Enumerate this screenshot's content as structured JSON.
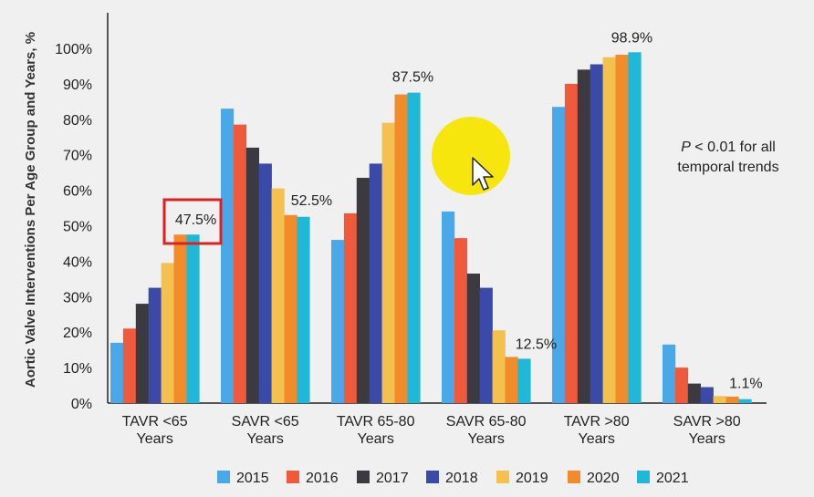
{
  "chart_data": {
    "type": "bar",
    "ylabel": "Aortic Valve Interventions Per Age Group and Years, %",
    "ylim": [
      0,
      100
    ],
    "yticks": [
      "0%",
      "10%",
      "20%",
      "30%",
      "40%",
      "50%",
      "60%",
      "70%",
      "80%",
      "90%",
      "100%"
    ],
    "categories": [
      [
        "TAVR <65",
        "Years"
      ],
      [
        "SAVR <65",
        "Years"
      ],
      [
        "TAVR 65-80",
        "Years"
      ],
      [
        "SAVR 65-80",
        "Years"
      ],
      [
        "TAVR >80",
        "Years"
      ],
      [
        "SAVR >80",
        "Years"
      ]
    ],
    "series": [
      {
        "name": "2015",
        "color": "#4aa8e8",
        "values": [
          17,
          83,
          46,
          54,
          83.5,
          16.5
        ]
      },
      {
        "name": "2016",
        "color": "#f05a3c",
        "values": [
          21,
          78.5,
          53.5,
          46.5,
          90,
          10
        ]
      },
      {
        "name": "2017",
        "color": "#3a3a40",
        "values": [
          28,
          72,
          63.5,
          36.5,
          94,
          5.5
        ]
      },
      {
        "name": "2018",
        "color": "#3b4aa8",
        "values": [
          32.5,
          67.5,
          67.5,
          32.5,
          95.5,
          4.5
        ]
      },
      {
        "name": "2019",
        "color": "#f5c14e",
        "values": [
          39.5,
          60.5,
          79,
          20.5,
          97.5,
          2
        ]
      },
      {
        "name": "2020",
        "color": "#f28c2a",
        "values": [
          47.5,
          53,
          87,
          13,
          98.2,
          1.8
        ]
      },
      {
        "name": "2021",
        "color": "#1fb8d8",
        "values": [
          47.5,
          52.5,
          87.5,
          12.5,
          98.9,
          1.1
        ]
      }
    ],
    "annotations": [
      {
        "category_index": 0,
        "series_index": 5,
        "text": "47.5%",
        "boxed": true
      },
      {
        "category_index": 1,
        "series_index": 6,
        "text": "52.5%"
      },
      {
        "category_index": 2,
        "series_index": 6,
        "text": "87.5%"
      },
      {
        "category_index": 3,
        "series_index": 6,
        "text": "12.5%"
      },
      {
        "category_index": 4,
        "series_index": 6,
        "text": "98.9%"
      },
      {
        "category_index": 5,
        "series_index": 6,
        "text": "1.1%"
      }
    ],
    "note": {
      "italic": "P",
      "rest_line1": " < 0.01 for all",
      "line2": "temporal trends"
    },
    "legend_position": "bottom",
    "grid": false,
    "highlight_color": "#e02020",
    "overlay_color": "#f5e500"
  }
}
